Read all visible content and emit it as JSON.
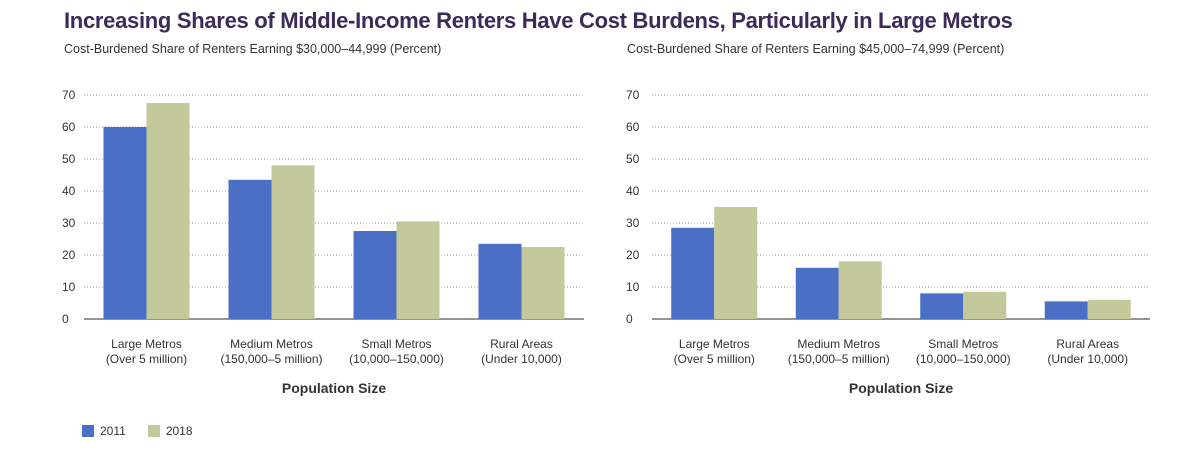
{
  "title": "Increasing Shares of Middle-Income Renters Have Cost Burdens, Particularly in Large Metros",
  "colors": {
    "2011": "#4a6fc4",
    "2018": "#c3c99a"
  },
  "legend": [
    {
      "label": "2011",
      "color": "#4a6fc4"
    },
    {
      "label": "2018",
      "color": "#c3c99a"
    }
  ],
  "chart_data": [
    {
      "type": "bar",
      "title": "Cost-Burdened Share of Renters Earning $30,000–44,999 (Percent)",
      "xlabel": "Population Size",
      "ylabel": "",
      "ylim": [
        0,
        70
      ],
      "yticks": [
        "0",
        "10",
        "20",
        "30",
        "40",
        "50",
        "60",
        "70"
      ],
      "categories": [
        [
          "Large Metros",
          "(Over 5 million)"
        ],
        [
          "Medium Metros",
          "(150,000–5 million)"
        ],
        [
          "Small Metros",
          "(10,000–150,000)"
        ],
        [
          "Rural Areas",
          "(Under 10,000)"
        ]
      ],
      "series": [
        {
          "name": "2011",
          "values": [
            60,
            43.5,
            27.5,
            23.5
          ]
        },
        {
          "name": "2018",
          "values": [
            67.5,
            48,
            30.5,
            22.5
          ]
        }
      ]
    },
    {
      "type": "bar",
      "title": "Cost-Burdened Share of Renters Earning $45,000–74,999 (Percent)",
      "xlabel": "Population Size",
      "ylabel": "",
      "ylim": [
        0,
        70
      ],
      "yticks": [
        "0",
        "10",
        "20",
        "30",
        "40",
        "50",
        "60",
        "70"
      ],
      "categories": [
        [
          "Large Metros",
          "(Over 5 million)"
        ],
        [
          "Medium Metros",
          "(150,000–5 million)"
        ],
        [
          "Small Metros",
          "(10,000–150,000)"
        ],
        [
          "Rural Areas",
          "(Under 10,000)"
        ]
      ],
      "series": [
        {
          "name": "2011",
          "values": [
            28.5,
            16,
            8,
            5.5
          ]
        },
        {
          "name": "2018",
          "values": [
            35,
            18,
            8.5,
            6
          ]
        }
      ]
    }
  ]
}
